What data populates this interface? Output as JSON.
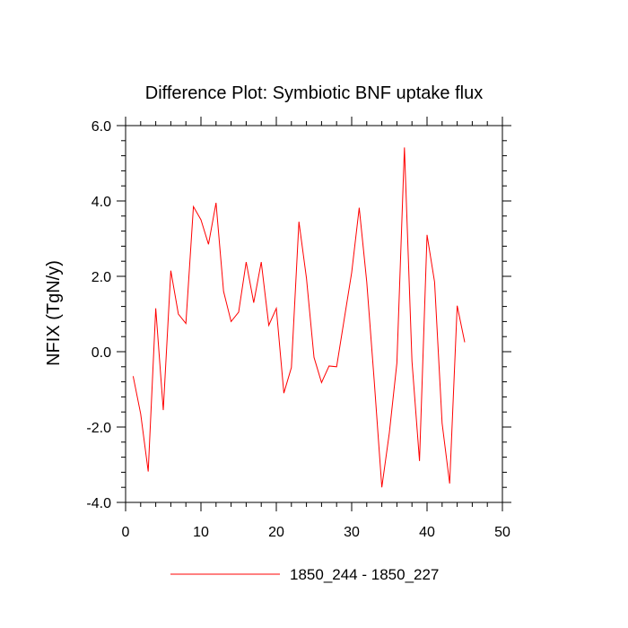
{
  "chart_data": {
    "type": "line",
    "title": "Difference Plot: Symbiotic BNF uptake flux",
    "xlabel": "",
    "ylabel": "NFIX  (TgN/y)",
    "xlim": [
      0,
      50
    ],
    "ylim": [
      -4.0,
      6.0
    ],
    "x_ticks": [
      0,
      10,
      20,
      30,
      40,
      50
    ],
    "x_tick_labels": [
      "0",
      "10",
      "20",
      "30",
      "40",
      "50"
    ],
    "y_ticks": [
      -4.0,
      -2.0,
      0.0,
      2.0,
      4.0,
      6.0
    ],
    "y_tick_labels": [
      "-4.0",
      "-2.0",
      "0.0",
      "2.0",
      "4.0",
      "6.0"
    ],
    "grid": false,
    "legend_position": "bottom-center",
    "series": [
      {
        "name": "1850_244 - 1850_227",
        "color": "#ff0000",
        "x": [
          1,
          2,
          3,
          4,
          5,
          6,
          7,
          8,
          9,
          10,
          11,
          12,
          13,
          14,
          15,
          16,
          17,
          18,
          19,
          20,
          21,
          22,
          23,
          24,
          25,
          26,
          27,
          28,
          29,
          30,
          31,
          32,
          33,
          34,
          35,
          36,
          37,
          38,
          39,
          40,
          41,
          42,
          43,
          44,
          45
        ],
        "y": [
          -0.65,
          -1.65,
          -3.18,
          1.15,
          -1.55,
          2.15,
          1.0,
          0.75,
          3.85,
          3.5,
          2.85,
          3.95,
          1.6,
          0.8,
          1.05,
          2.38,
          1.3,
          2.38,
          0.7,
          1.15,
          -1.1,
          -0.42,
          3.45,
          1.95,
          -0.15,
          -0.82,
          -0.38,
          -0.4,
          0.85,
          2.1,
          3.82,
          1.85,
          -0.8,
          -3.6,
          -2.15,
          -0.3,
          5.42,
          -0.25,
          -2.9,
          3.1,
          1.85,
          -1.9,
          -3.5,
          1.22,
          0.25
        ]
      }
    ]
  }
}
